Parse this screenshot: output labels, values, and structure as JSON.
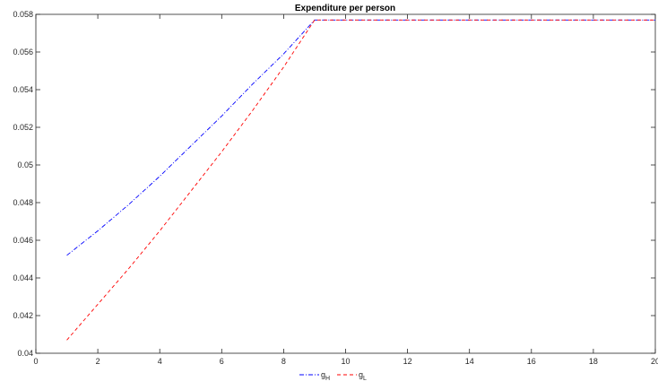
{
  "chart_data": {
    "type": "line",
    "title": "Expenditure per person",
    "xlabel": "",
    "ylabel": "",
    "xlim": [
      0,
      20
    ],
    "ylim": [
      0.04,
      0.058
    ],
    "xticks": [
      "0",
      "2",
      "4",
      "6",
      "8",
      "10",
      "12",
      "14",
      "16",
      "18",
      "20"
    ],
    "xtick_values": [
      0,
      2,
      4,
      6,
      8,
      10,
      12,
      14,
      16,
      18,
      20
    ],
    "yticks": [
      "0.04",
      "0.042",
      "0.044",
      "0.046",
      "0.048",
      "0.05",
      "0.052",
      "0.054",
      "0.056",
      "0.058"
    ],
    "ytick_values": [
      0.04,
      0.042,
      0.044,
      0.046,
      0.048,
      0.05,
      0.052,
      0.054,
      0.056,
      0.058
    ],
    "grid": false,
    "legend_position": "bottom",
    "x": [
      1,
      2,
      3,
      4,
      5,
      6,
      7,
      8,
      9,
      10,
      11,
      12,
      13,
      14,
      15,
      16,
      17,
      18,
      19,
      20
    ],
    "series": [
      {
        "name": "g",
        "subscript": "H",
        "color": "#0000ff",
        "dash": "dash-dot",
        "values": [
          0.0452,
          0.0465,
          0.0479,
          0.0494,
          0.051,
          0.0526,
          0.0543,
          0.0559,
          0.0577,
          0.0577,
          0.0577,
          0.0577,
          0.0577,
          0.0577,
          0.0577,
          0.0577,
          0.0577,
          0.0577,
          0.0577,
          0.0577
        ]
      },
      {
        "name": "g",
        "subscript": "L",
        "color": "#ff0000",
        "dash": "dashed",
        "values": [
          0.0407,
          0.0426,
          0.0445,
          0.0465,
          0.0486,
          0.0507,
          0.0529,
          0.0552,
          0.0577,
          0.0577,
          0.0577,
          0.0577,
          0.0577,
          0.0577,
          0.0577,
          0.0577,
          0.0577,
          0.0577,
          0.0577,
          0.0577
        ]
      }
    ]
  }
}
